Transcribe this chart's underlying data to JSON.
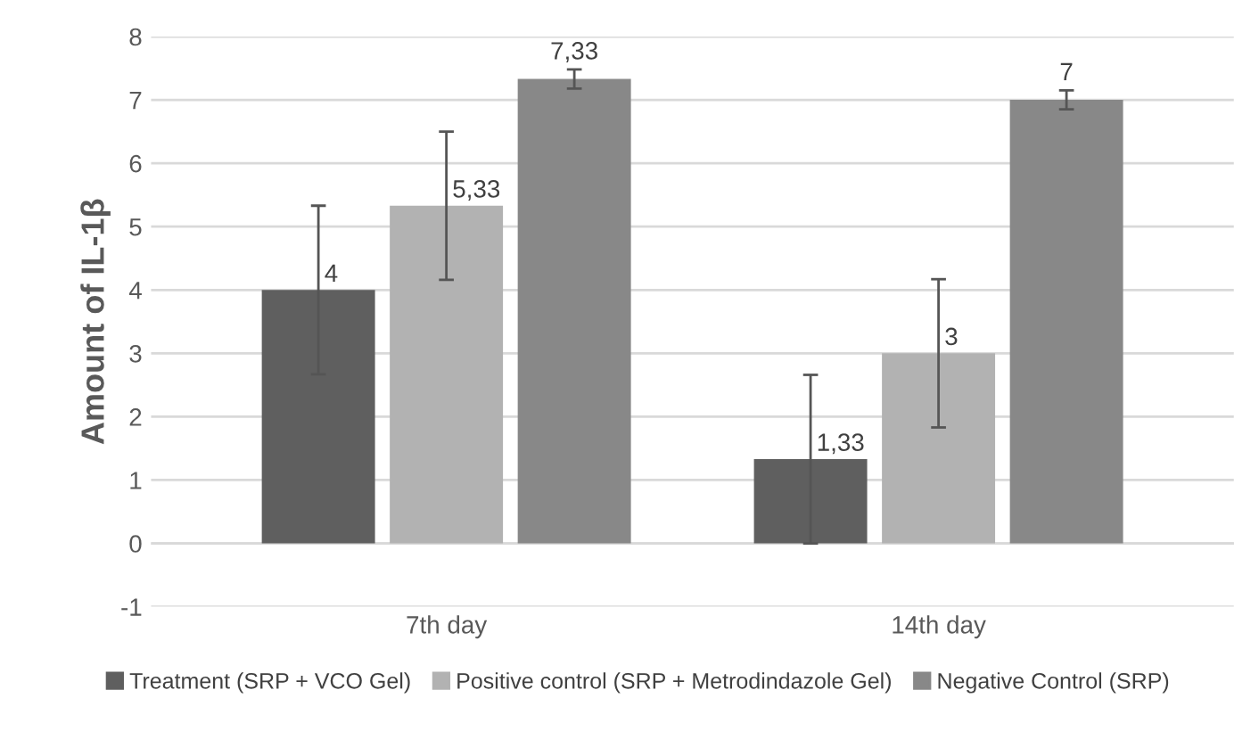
{
  "chart_data": {
    "type": "bar",
    "ylabel": "Amount of IL-1β",
    "categories": [
      "7th day",
      "14th day"
    ],
    "series": [
      {
        "name": "Treatment (SRP + VCO Gel)",
        "color": "#5f5f5f",
        "values": [
          4,
          1.33
        ],
        "errors": [
          1.33,
          1.33
        ],
        "value_labels": [
          "4",
          "1,33"
        ]
      },
      {
        "name": "Positive control (SRP + Metrodindazole Gel)",
        "color": "#b2b2b2",
        "values": [
          5.33,
          3
        ],
        "errors": [
          1.17,
          1.17
        ],
        "value_labels": [
          "5,33",
          "3"
        ]
      },
      {
        "name": "Negative Control (SRP)",
        "color": "#888888",
        "values": [
          7.33,
          7
        ],
        "errors": [
          0.15,
          0.15
        ],
        "value_labels": [
          "7,33",
          "7"
        ]
      }
    ],
    "ylim": [
      -1,
      8
    ],
    "yticks": [
      -1,
      0,
      1,
      2,
      3,
      4,
      5,
      6,
      7,
      8
    ],
    "grid": "y",
    "legend": "bottom"
  }
}
